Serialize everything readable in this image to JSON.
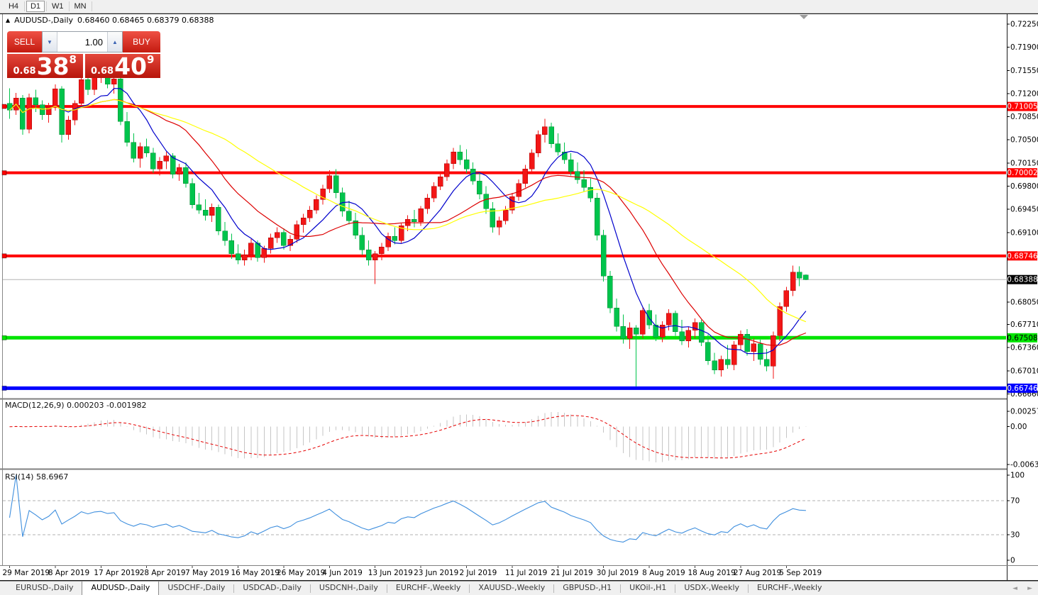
{
  "toolbar": {
    "timeframes": [
      {
        "label": "H4",
        "active": false
      },
      {
        "label": "D1",
        "active": true
      },
      {
        "label": "W1",
        "active": false
      },
      {
        "label": "MN",
        "active": false
      }
    ]
  },
  "chart_header": {
    "collapse_icon": "▲",
    "symbol": "AUDUSD-,Daily",
    "ohlc": "0.68460 0.68465 0.68379 0.68388"
  },
  "trade_panel": {
    "sell_label": "SELL",
    "buy_label": "BUY",
    "volume": "1.00",
    "volume_down_icon": "▼",
    "volume_up_icon": "▲",
    "sell_price": {
      "prefix": "0.68",
      "big": "38",
      "sup": "8"
    },
    "buy_price": {
      "prefix": "0.68",
      "big": "40",
      "sup": "9"
    }
  },
  "chart_data": {
    "type": "candlestick",
    "symbol": "AUDUSD-,Daily",
    "convention": "red-up-green-down",
    "ylim": [
      0.666,
      0.724
    ],
    "up_color": "#f21616",
    "down_color": "#00c44c",
    "y_ticks": [
      0.7225,
      0.719,
      0.7155,
      0.712,
      0.7085,
      0.705,
      0.7015,
      0.698,
      0.6945,
      0.691,
      0.6805,
      0.6771,
      0.6736,
      0.6701,
      0.6666
    ],
    "x_labels": [
      "29 Mar 2019",
      "8 Apr 2019",
      "17 Apr 2019",
      "28 Apr 2019",
      "7 May 2019",
      "16 May 2019",
      "26 May 2019",
      "4 Jun 2019",
      "13 Jun 2019",
      "23 Jun 2019",
      "2 Jul 2019",
      "11 Jul 2019",
      "21 Jul 2019",
      "30 Jul 2019",
      "8 Aug 2019",
      "18 Aug 2019",
      "27 Aug 2019",
      "5 Sep 2019"
    ],
    "x_label_every": 7,
    "hlines": [
      {
        "price": 0.71005,
        "color": "#ff0000",
        "text": "#ffffff",
        "width": 4
      },
      {
        "price": 0.70002,
        "color": "#ff0000",
        "text": "#ffffff",
        "width": 4
      },
      {
        "price": 0.68746,
        "color": "#ff0000",
        "text": "#ffffff",
        "width": 4
      },
      {
        "price": 0.67508,
        "color": "#00e400",
        "text": "#000000",
        "width": 5
      },
      {
        "price": 0.66746,
        "color": "#0000ff",
        "text": "#ffffff",
        "width": 5
      }
    ],
    "current_price": {
      "value": 0.68388,
      "color": "#000000",
      "text": "#ffffff"
    },
    "moving_averages": [
      {
        "period": 8,
        "color": "#0000cc"
      },
      {
        "period": 17,
        "color": "#dd0000"
      },
      {
        "period": 34,
        "color": "#ffff00"
      }
    ],
    "indicators": {
      "macd": {
        "label": "MACD(12,26,9)",
        "values": "0.000203 -0.001982",
        "fast": 12,
        "slow": 26,
        "signal": 9,
        "hist_color": "#c6c6c6",
        "signal_color": "#e60000",
        "axis": [
          {
            "v": 0.002574,
            "t": "0.002574"
          },
          {
            "v": 0,
            "t": "0.00"
          },
          {
            "v": -0.006326,
            "t": "-0.006326"
          }
        ],
        "range": [
          -0.006326,
          0.002574
        ]
      },
      "rsi": {
        "label": "RSI(14)",
        "value": "58.6967",
        "period": 14,
        "color": "#3f8fde",
        "levels": [
          70,
          30
        ],
        "axis": [
          {
            "v": 100,
            "t": "100"
          },
          {
            "v": 70,
            "t": "70"
          },
          {
            "v": 30,
            "t": "30"
          },
          {
            "v": 0,
            "t": "0"
          }
        ]
      }
    },
    "ohlc": [
      [
        0.7105,
        0.7128,
        0.7082,
        0.7095
      ],
      [
        0.7095,
        0.7121,
        0.7088,
        0.7113
      ],
      [
        0.7113,
        0.7118,
        0.7058,
        0.7066
      ],
      [
        0.7066,
        0.712,
        0.706,
        0.7114
      ],
      [
        0.7114,
        0.7126,
        0.7092,
        0.7103
      ],
      [
        0.7103,
        0.711,
        0.708,
        0.7088
      ],
      [
        0.7088,
        0.7106,
        0.7076,
        0.71
      ],
      [
        0.71,
        0.7134,
        0.7094,
        0.7127
      ],
      [
        0.7127,
        0.7131,
        0.7046,
        0.7058
      ],
      [
        0.7058,
        0.7086,
        0.705,
        0.708
      ],
      [
        0.708,
        0.711,
        0.7072,
        0.7105
      ],
      [
        0.7105,
        0.7146,
        0.71,
        0.7141
      ],
      [
        0.7141,
        0.715,
        0.7118,
        0.7126
      ],
      [
        0.7126,
        0.715,
        0.7118,
        0.7144
      ],
      [
        0.7144,
        0.7156,
        0.7136,
        0.715
      ],
      [
        0.715,
        0.7154,
        0.7128,
        0.7134
      ],
      [
        0.7134,
        0.7148,
        0.712,
        0.7142
      ],
      [
        0.7142,
        0.7146,
        0.7072,
        0.7078
      ],
      [
        0.7078,
        0.7092,
        0.704,
        0.7046
      ],
      [
        0.7046,
        0.706,
        0.7016,
        0.7022
      ],
      [
        0.7022,
        0.7046,
        0.7008,
        0.704
      ],
      [
        0.704,
        0.7052,
        0.7024,
        0.703
      ],
      [
        0.703,
        0.7038,
        0.7,
        0.7006
      ],
      [
        0.7006,
        0.7024,
        0.6996,
        0.7018
      ],
      [
        0.7018,
        0.7032,
        0.7006,
        0.7026
      ],
      [
        0.7026,
        0.703,
        0.6992,
        0.6998
      ],
      [
        0.6998,
        0.7014,
        0.6988,
        0.7008
      ],
      [
        0.7008,
        0.7016,
        0.6978,
        0.6984
      ],
      [
        0.6984,
        0.6992,
        0.6946,
        0.6952
      ],
      [
        0.6952,
        0.697,
        0.6938,
        0.6944
      ],
      [
        0.6944,
        0.696,
        0.6928,
        0.6936
      ],
      [
        0.6936,
        0.6954,
        0.6926,
        0.6948
      ],
      [
        0.6948,
        0.6952,
        0.6906,
        0.6912
      ],
      [
        0.6912,
        0.6926,
        0.689,
        0.6898
      ],
      [
        0.6898,
        0.6908,
        0.687,
        0.6878
      ],
      [
        0.6878,
        0.6892,
        0.6862,
        0.6868
      ],
      [
        0.6868,
        0.6884,
        0.686,
        0.6876
      ],
      [
        0.6876,
        0.69,
        0.6868,
        0.6894
      ],
      [
        0.6894,
        0.6898,
        0.6866,
        0.6872
      ],
      [
        0.6872,
        0.689,
        0.6864,
        0.6886
      ],
      [
        0.6886,
        0.6908,
        0.6878,
        0.6902
      ],
      [
        0.6902,
        0.6918,
        0.6894,
        0.691
      ],
      [
        0.691,
        0.6916,
        0.6884,
        0.689
      ],
      [
        0.689,
        0.6906,
        0.6882,
        0.69
      ],
      [
        0.69,
        0.6928,
        0.6894,
        0.6922
      ],
      [
        0.6922,
        0.6938,
        0.691,
        0.6932
      ],
      [
        0.6932,
        0.695,
        0.6926,
        0.6944
      ],
      [
        0.6944,
        0.6966,
        0.6938,
        0.696
      ],
      [
        0.696,
        0.6982,
        0.6952,
        0.6976
      ],
      [
        0.6976,
        0.7004,
        0.697,
        0.6996
      ],
      [
        0.6996,
        0.7006,
        0.6962,
        0.697
      ],
      [
        0.697,
        0.6978,
        0.6934,
        0.6942
      ],
      [
        0.6942,
        0.6958,
        0.6922,
        0.6928
      ],
      [
        0.6928,
        0.694,
        0.69,
        0.6906
      ],
      [
        0.6906,
        0.6918,
        0.6876,
        0.6884
      ],
      [
        0.6884,
        0.6898,
        0.686,
        0.6868
      ],
      [
        0.6868,
        0.6882,
        0.6832,
        0.6878
      ],
      [
        0.6878,
        0.6894,
        0.6868,
        0.6888
      ],
      [
        0.6888,
        0.691,
        0.6882,
        0.6904
      ],
      [
        0.6904,
        0.6918,
        0.6892,
        0.6898
      ],
      [
        0.6898,
        0.6924,
        0.6894,
        0.692
      ],
      [
        0.692,
        0.6936,
        0.6912,
        0.693
      ],
      [
        0.693,
        0.6944,
        0.6918,
        0.6926
      ],
      [
        0.6926,
        0.695,
        0.692,
        0.6946
      ],
      [
        0.6946,
        0.6968,
        0.6938,
        0.6962
      ],
      [
        0.6962,
        0.6986,
        0.6956,
        0.698
      ],
      [
        0.698,
        0.7,
        0.6974,
        0.6994
      ],
      [
        0.6994,
        0.702,
        0.6988,
        0.7014
      ],
      [
        0.7014,
        0.7038,
        0.7006,
        0.7032
      ],
      [
        0.7032,
        0.7042,
        0.7012,
        0.702
      ],
      [
        0.702,
        0.7036,
        0.7,
        0.7006
      ],
      [
        0.7006,
        0.7016,
        0.6982,
        0.6988
      ],
      [
        0.6988,
        0.7,
        0.696,
        0.6968
      ],
      [
        0.6968,
        0.698,
        0.6938,
        0.6946
      ],
      [
        0.6946,
        0.6956,
        0.691,
        0.6918
      ],
      [
        0.6918,
        0.6934,
        0.6906,
        0.6928
      ],
      [
        0.6928,
        0.695,
        0.6922,
        0.6944
      ],
      [
        0.6944,
        0.697,
        0.6938,
        0.6964
      ],
      [
        0.6964,
        0.699,
        0.6958,
        0.6984
      ],
      [
        0.6984,
        0.7012,
        0.6978,
        0.7006
      ],
      [
        0.7006,
        0.7036,
        0.7,
        0.703
      ],
      [
        0.703,
        0.7064,
        0.7024,
        0.7058
      ],
      [
        0.7058,
        0.7082,
        0.7046,
        0.707
      ],
      [
        0.707,
        0.7076,
        0.7038,
        0.7044
      ],
      [
        0.7044,
        0.706,
        0.7026,
        0.7032
      ],
      [
        0.7032,
        0.7046,
        0.7014,
        0.702
      ],
      [
        0.702,
        0.703,
        0.6996,
        0.7002
      ],
      [
        0.7002,
        0.7016,
        0.6984,
        0.699
      ],
      [
        0.699,
        0.7004,
        0.6972,
        0.6978
      ],
      [
        0.6978,
        0.6992,
        0.6956,
        0.6962
      ],
      [
        0.6962,
        0.697,
        0.6898,
        0.6906
      ],
      [
        0.6906,
        0.6914,
        0.6836,
        0.6844
      ],
      [
        0.6844,
        0.6852,
        0.6788,
        0.6796
      ],
      [
        0.6796,
        0.681,
        0.676,
        0.6768
      ],
      [
        0.6768,
        0.6786,
        0.6742,
        0.675
      ],
      [
        0.675,
        0.6774,
        0.6734,
        0.6766
      ],
      [
        0.6766,
        0.677,
        0.6677,
        0.6756
      ],
      [
        0.6756,
        0.6798,
        0.675,
        0.6792
      ],
      [
        0.6792,
        0.6802,
        0.6764,
        0.677
      ],
      [
        0.677,
        0.6786,
        0.6746,
        0.6752
      ],
      [
        0.6752,
        0.6776,
        0.6744,
        0.677
      ],
      [
        0.677,
        0.6794,
        0.6762,
        0.6788
      ],
      [
        0.6788,
        0.6792,
        0.6754,
        0.676
      ],
      [
        0.676,
        0.6778,
        0.674,
        0.6746
      ],
      [
        0.6746,
        0.6768,
        0.6736,
        0.6762
      ],
      [
        0.6762,
        0.678,
        0.675,
        0.6774
      ],
      [
        0.6774,
        0.6778,
        0.6738,
        0.6744
      ],
      [
        0.6744,
        0.6756,
        0.671,
        0.6716
      ],
      [
        0.6716,
        0.6728,
        0.6696,
        0.6702
      ],
      [
        0.6702,
        0.6724,
        0.6692,
        0.6718
      ],
      [
        0.6718,
        0.674,
        0.6704,
        0.671
      ],
      [
        0.671,
        0.6746,
        0.6702,
        0.674
      ],
      [
        0.674,
        0.6762,
        0.6732,
        0.6756
      ],
      [
        0.6756,
        0.6764,
        0.6724,
        0.673
      ],
      [
        0.673,
        0.675,
        0.6716,
        0.6742
      ],
      [
        0.6742,
        0.6748,
        0.671,
        0.6718
      ],
      [
        0.6718,
        0.6734,
        0.67,
        0.6708
      ],
      [
        0.6708,
        0.676,
        0.6689,
        0.6754
      ],
      [
        0.6754,
        0.6804,
        0.6746,
        0.6798
      ],
      [
        0.6798,
        0.6828,
        0.679,
        0.6822
      ],
      [
        0.6822,
        0.686,
        0.6814,
        0.685
      ],
      [
        0.685,
        0.6859,
        0.6829,
        0.6841
      ],
      [
        0.6846,
        0.68465,
        0.68379,
        0.68388
      ]
    ]
  },
  "bottom_tabs": {
    "tabs": [
      {
        "label": "EURUSD-,Daily",
        "active": false
      },
      {
        "label": "AUDUSD-,Daily",
        "active": true
      },
      {
        "label": "USDCHF-,Daily",
        "active": false
      },
      {
        "label": "USDCAD-,Daily",
        "active": false
      },
      {
        "label": "USDCNH-,Daily",
        "active": false
      },
      {
        "label": "EURCHF-,Weekly",
        "active": false
      },
      {
        "label": "XAUUSD-,Weekly",
        "active": false
      },
      {
        "label": "GBPUSD-,H1",
        "active": false
      },
      {
        "label": "UKOil-,H1",
        "active": false
      },
      {
        "label": "USDX-,Weekly",
        "active": false
      },
      {
        "label": "EURCHF-,Weekly",
        "active": false
      }
    ],
    "scroll_left": "◄",
    "scroll_right": "►"
  }
}
